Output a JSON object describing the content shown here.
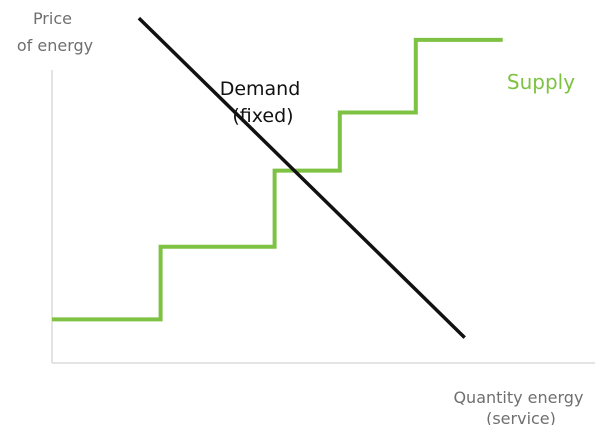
{
  "chart_data": {
    "type": "line",
    "title": "",
    "ylabel_lines": [
      "Price",
      "of energy"
    ],
    "xlabel_lines": [
      "Quantity energy",
      "(service)"
    ],
    "xlim": [
      0,
      100
    ],
    "ylim": [
      0,
      100
    ],
    "grid": false,
    "series": [
      {
        "name": "Supply",
        "shape": "step",
        "color": "#7dc242",
        "x": [
          0,
          20,
          20,
          41,
          41,
          53,
          53,
          67,
          67,
          83
        ],
        "y": [
          12,
          12,
          32,
          32,
          53,
          53,
          69,
          69,
          89,
          89
        ]
      },
      {
        "name": "Demand",
        "label_lines": [
          "Demand",
          "(fixed)"
        ],
        "shape": "straight",
        "color": "#111111",
        "x": [
          16,
          76
        ],
        "y": [
          95,
          7
        ]
      }
    ]
  }
}
